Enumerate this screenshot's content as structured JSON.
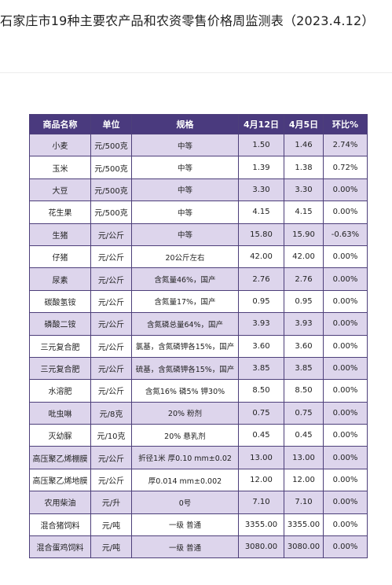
{
  "title": "石家庄市19种主要农产品和农资零售价格周监测表（2023.4.12）",
  "submark": "",
  "table": {
    "headers": [
      "商品名称",
      "单位",
      "规格",
      "4月12日",
      "4月5日",
      "环比%"
    ],
    "rows": [
      [
        "小麦",
        "元/500克",
        "中等",
        "1.50",
        "1.46",
        "2.74%"
      ],
      [
        "玉米",
        "元/500克",
        "中等",
        "1.39",
        "1.38",
        "0.72%"
      ],
      [
        "大豆",
        "元/500克",
        "中等",
        "3.30",
        "3.30",
        "0.00%"
      ],
      [
        "花生果",
        "元/500克",
        "中等",
        "4.15",
        "4.15",
        "0.00%"
      ],
      [
        "生猪",
        "元/公斤",
        "中等",
        "15.80",
        "15.90",
        "-0.63%"
      ],
      [
        "仔猪",
        "元/公斤",
        "20公斤左右",
        "42.00",
        "42.00",
        "0.00%"
      ],
      [
        "尿素",
        "元/公斤",
        "含氮量46%，国产",
        "2.76",
        "2.76",
        "0.00%"
      ],
      [
        "碳酸氢铵",
        "元/公斤",
        "含氮量17%，国产",
        "0.95",
        "0.95",
        "0.00%"
      ],
      [
        "磷酸二铵",
        "元/公斤",
        "含氮磷总量64%，国产",
        "3.93",
        "3.93",
        "0.00%"
      ],
      [
        "三元复合肥",
        "元/公斤",
        "氯基，含氮磷钾各15%，国产",
        "3.60",
        "3.60",
        "0.00%"
      ],
      [
        "三元复合肥",
        "元/公斤",
        "硫基，含氮磷钾各15%，国产",
        "3.85",
        "3.85",
        "0.00%"
      ],
      [
        "水溶肥",
        "元/公斤",
        "含氮16% 磷5% 钾30%",
        "8.50",
        "8.50",
        "0.00%"
      ],
      [
        "吡虫啉",
        "元/8克",
        "20% 粉剂",
        "0.75",
        "0.75",
        "0.00%"
      ],
      [
        "灭幼脲",
        "元/10克",
        "20% 悬乳剂",
        "0.45",
        "0.45",
        "0.00%"
      ],
      [
        "高压聚乙烯棚膜",
        "元/公斤",
        "折径1米 厚0.10 mm±0.02",
        "13.00",
        "13.00",
        "0.00%"
      ],
      [
        "高压聚乙烯地膜",
        "元/公斤",
        "厚0.014 mm±0.002",
        "12.00",
        "12.00",
        "0.00%"
      ],
      [
        "农用柴油",
        "元/升",
        "0号",
        "7.10",
        "7.10",
        "0.00%"
      ],
      [
        "混合猪饲料",
        "元/吨",
        "一级 普通",
        "3355.00",
        "3355.00",
        "0.00%"
      ],
      [
        "混合蛋鸡饲料",
        "元/吨",
        "一级 普通",
        "3080.00",
        "3080.00",
        "0.00%"
      ]
    ]
  },
  "colors": {
    "header_bg": "#4a3a7e",
    "odd_row_bg": "#ddd5ec",
    "even_row_bg": "#ffffff",
    "border": "#4d3f7a"
  }
}
